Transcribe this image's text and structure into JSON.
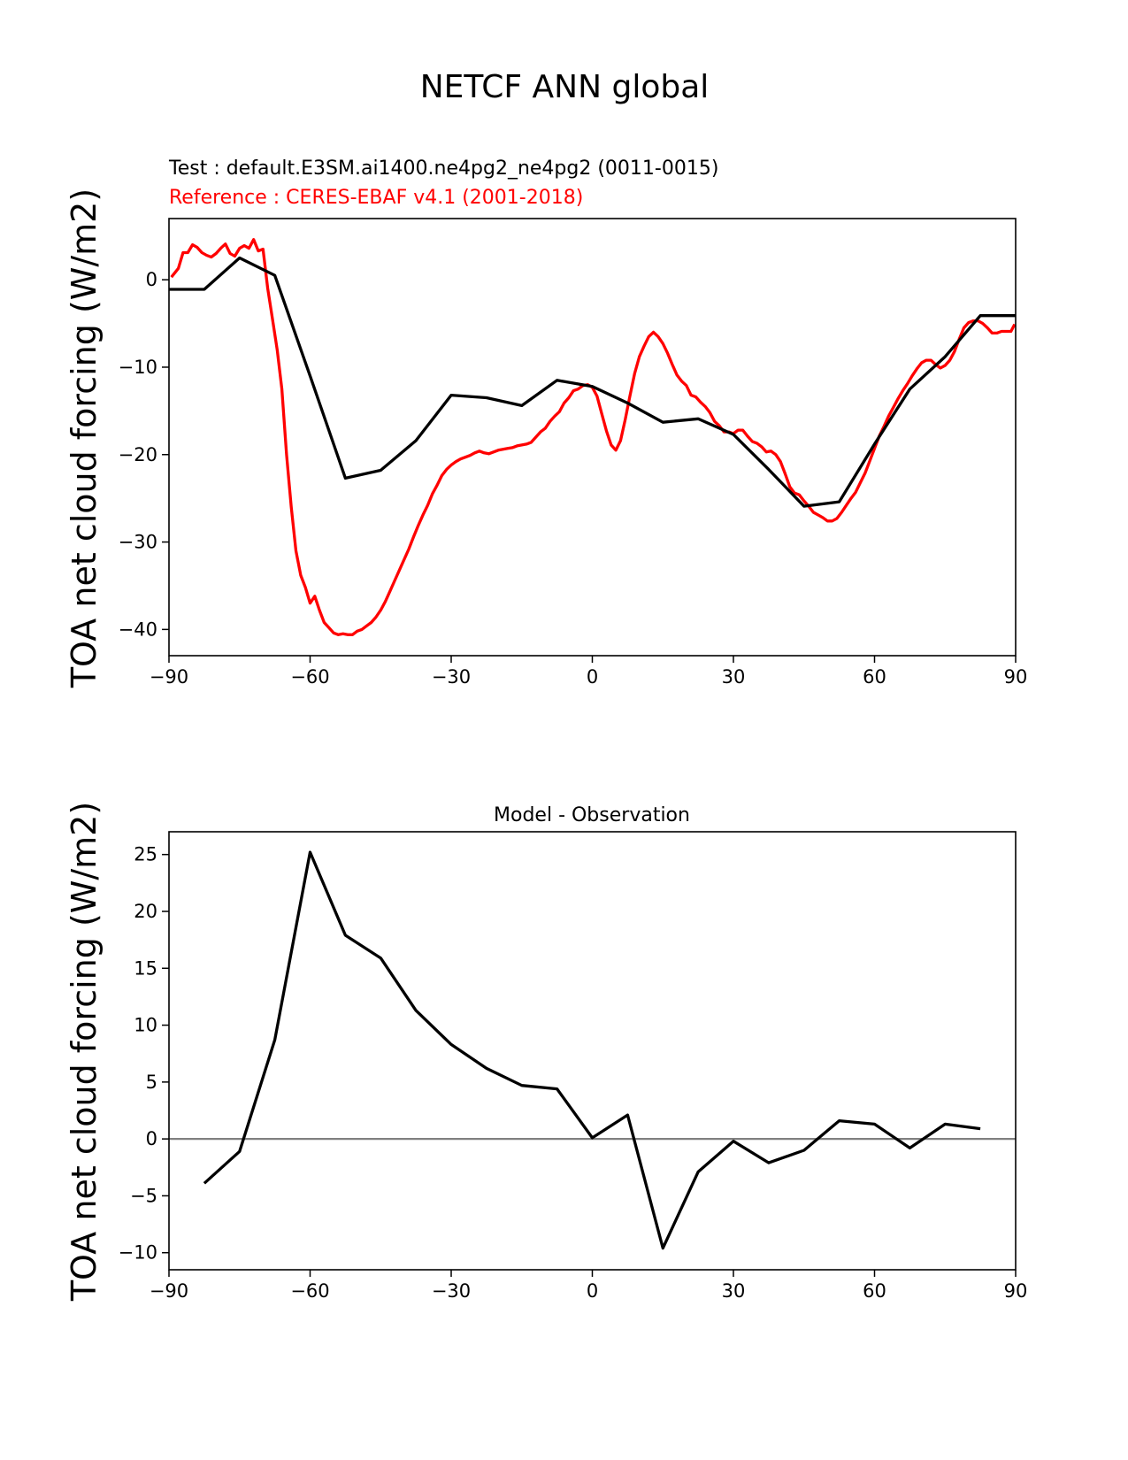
{
  "figure": {
    "title": "NETCF ANN global"
  },
  "chart_data": [
    {
      "type": "line",
      "test_label": "Test : default.E3SM.ai1400.ne4pg2_ne4pg2 (0011-0015)",
      "ref_label": "Reference : CERES-EBAF v4.1 (2001-2018)",
      "ylabel": "TOA net cloud forcing (W/m2)",
      "xlim": [
        -90,
        90
      ],
      "ylim": [
        -43,
        7
      ],
      "xticks": [
        "−90",
        "−60",
        "−30",
        "0",
        "30",
        "60",
        "90"
      ],
      "yticks": [
        "−40",
        "−30",
        "−20",
        "−10",
        "0"
      ],
      "series": [
        {
          "name": "Test",
          "color": "#000000",
          "x": [
            -90,
            -82.5,
            -75,
            -67.5,
            -60,
            -52.5,
            -45,
            -37.5,
            -30,
            -22.5,
            -15,
            -7.5,
            0,
            7.5,
            15,
            22.5,
            30,
            37.5,
            45,
            52.5,
            60,
            67.5,
            75,
            82.5,
            90
          ],
          "y": [
            -1.1,
            -1.1,
            2.5,
            0.5,
            -11,
            -22.7,
            -21.8,
            -18.4,
            -13.2,
            -13.5,
            -14.4,
            -11.5,
            -12.2,
            -14.1,
            -16.3,
            -15.9,
            -17.7,
            -21.7,
            -25.9,
            -25.4,
            -18.8,
            -12.5,
            -8.8,
            -4.1,
            -4.1
          ]
        },
        {
          "name": "Reference",
          "color": "#ff0000",
          "x": [
            -89.5,
            -88,
            -87,
            -86,
            -85,
            -84,
            -83,
            -82,
            -81,
            -80,
            -79,
            -78,
            -77,
            -76,
            -75,
            -74,
            -73,
            -72,
            -71,
            -70,
            -69,
            -68,
            -67,
            -66,
            -65,
            -64,
            -63,
            -62,
            -61,
            -60,
            -59,
            -58,
            -57,
            -56,
            -55,
            -54,
            -53,
            -52,
            -51,
            -50,
            -49,
            -48,
            -47,
            -46,
            -45,
            -44,
            -43,
            -42,
            -41,
            -40,
            -39,
            -38,
            -37,
            -36,
            -35,
            -34,
            -33,
            -32,
            -31,
            -30,
            -29,
            -28,
            -27,
            -26,
            -25,
            -24,
            -23,
            -22,
            -21,
            -20,
            -19,
            -18,
            -17,
            -16,
            -15,
            -14,
            -13,
            -12,
            -11,
            -10,
            -9,
            -8,
            -7,
            -6,
            -5,
            -4,
            -3,
            -2,
            -1,
            0,
            1,
            2,
            3,
            4,
            5,
            6,
            7,
            8,
            9,
            10,
            11,
            12,
            13,
            14,
            15,
            16,
            17,
            18,
            19,
            20,
            21,
            22,
            23,
            24,
            25,
            26,
            27,
            28,
            29,
            30,
            31,
            32,
            33,
            34,
            35,
            36,
            37,
            38,
            39,
            40,
            41,
            42,
            43,
            44,
            45,
            46,
            47,
            48,
            49,
            50,
            51,
            52,
            53,
            54,
            55,
            56,
            57,
            58,
            59,
            60,
            61,
            62,
            63,
            64,
            65,
            66,
            67,
            68,
            69,
            70,
            71,
            72,
            73,
            74,
            75,
            76,
            77,
            78,
            79,
            80,
            81,
            82,
            83,
            84,
            85,
            86,
            87,
            88,
            89,
            89.8
          ],
          "y": [
            0.3,
            1.3,
            3.1,
            3.1,
            4.0,
            3.7,
            3.1,
            2.8,
            2.6,
            3.0,
            3.6,
            4.1,
            3.0,
            2.7,
            3.6,
            3.9,
            3.6,
            4.6,
            3.3,
            3.5,
            -1.0,
            -4.5,
            -8.0,
            -12.5,
            -20.0,
            -26.0,
            -31.0,
            -33.8,
            -35.2,
            -37.0,
            -36.2,
            -37.8,
            -39.2,
            -39.8,
            -40.4,
            -40.6,
            -40.5,
            -40.6,
            -40.6,
            -40.2,
            -40.0,
            -39.6,
            -39.2,
            -38.6,
            -37.8,
            -36.8,
            -35.6,
            -34.4,
            -33.2,
            -32.0,
            -30.8,
            -29.4,
            -28.1,
            -26.9,
            -25.8,
            -24.5,
            -23.5,
            -22.4,
            -21.7,
            -21.2,
            -20.8,
            -20.5,
            -20.3,
            -20.1,
            -19.8,
            -19.6,
            -19.8,
            -19.9,
            -19.7,
            -19.5,
            -19.4,
            -19.3,
            -19.2,
            -19.0,
            -18.9,
            -18.8,
            -18.6,
            -18.0,
            -17.4,
            -17.0,
            -16.2,
            -15.6,
            -15.1,
            -14.1,
            -13.5,
            -12.7,
            -12.5,
            -12.1,
            -12.0,
            -12.3,
            -13.3,
            -15.3,
            -17.3,
            -18.9,
            -19.5,
            -18.4,
            -16.0,
            -13.3,
            -10.7,
            -8.8,
            -7.6,
            -6.5,
            -6.0,
            -6.5,
            -7.3,
            -8.4,
            -9.7,
            -10.9,
            -11.6,
            -12.1,
            -13.2,
            -13.4,
            -14.0,
            -14.5,
            -15.2,
            -16.2,
            -16.7,
            -17.4,
            -17.4,
            -17.6,
            -17.2,
            -17.2,
            -17.9,
            -18.5,
            -18.7,
            -19.1,
            -19.7,
            -19.6,
            -20.0,
            -20.8,
            -22.2,
            -23.7,
            -24.4,
            -24.6,
            -25.3,
            -25.9,
            -26.6,
            -26.9,
            -27.2,
            -27.6,
            -27.6,
            -27.3,
            -26.6,
            -25.8,
            -25.0,
            -24.3,
            -23.2,
            -22.1,
            -20.7,
            -19.3,
            -17.9,
            -16.8,
            -15.6,
            -14.6,
            -13.6,
            -12.7,
            -11.9,
            -11.0,
            -10.2,
            -9.5,
            -9.2,
            -9.2,
            -9.7,
            -10.1,
            -9.8,
            -9.2,
            -8.2,
            -6.8,
            -5.5,
            -4.9,
            -4.7,
            -4.7,
            -5.0,
            -5.5,
            -6.1,
            -6.1,
            -5.9,
            -5.9,
            -5.9,
            -5.1
          ]
        }
      ]
    },
    {
      "type": "line",
      "title": "Model - Observation",
      "ylabel": "TOA net cloud forcing (W/m2)",
      "xlim": [
        -90,
        90
      ],
      "ylim": [
        -11.5,
        27
      ],
      "xticks": [
        "−90",
        "−60",
        "−30",
        "0",
        "30",
        "60",
        "90"
      ],
      "yticks": [
        "−10",
        "−5",
        "0",
        "5",
        "10",
        "15",
        "20",
        "25"
      ],
      "zero_line_color": "#808080",
      "series": [
        {
          "name": "Model - Observation",
          "color": "#000000",
          "x": [
            -82.5,
            -75,
            -67.5,
            -60,
            -52.5,
            -45,
            -37.5,
            -30,
            -22.5,
            -15,
            -7.5,
            0,
            7.5,
            15,
            22.5,
            30,
            37.5,
            45,
            52.5,
            60,
            67.5,
            75,
            82.5
          ],
          "y": [
            -3.9,
            -1.1,
            8.7,
            25.2,
            17.9,
            15.9,
            11.3,
            8.3,
            6.2,
            4.7,
            4.4,
            0.1,
            2.1,
            -9.6,
            -2.9,
            -0.2,
            -2.1,
            -1.0,
            1.6,
            1.3,
            -0.8,
            1.3,
            0.9
          ]
        }
      ]
    }
  ]
}
